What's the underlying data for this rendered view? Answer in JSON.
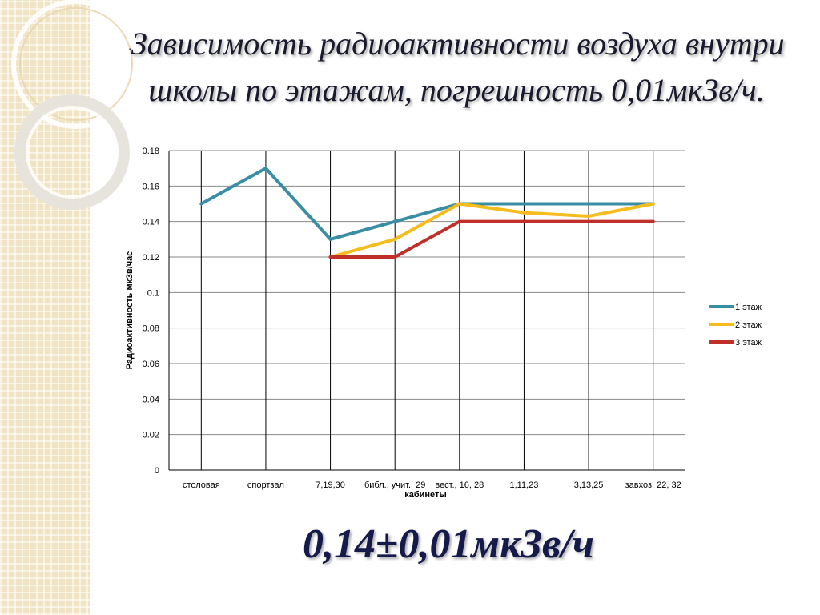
{
  "slide": {
    "bullet": ".",
    "title": "Зависимость радиоактивности воздуха внутри школы по этажам, погрешность 0,01мкЗв/ч.",
    "result": "0,14±0,01мкЗв/ч"
  },
  "chart_data": {
    "type": "line",
    "title": "",
    "xlabel": "кабинеты",
    "ylabel": "Радиоактивность мкЗв/час",
    "ylim": [
      0,
      0.18
    ],
    "yticks": [
      "0",
      "0.02",
      "0.04",
      "0.06",
      "0.08",
      "0.1",
      "0.12",
      "0.14",
      "0.16",
      "0.18"
    ],
    "grid": true,
    "legend_position": "right",
    "categories": [
      "столовая",
      "спортзал",
      "7,19,30",
      "библ., учит., 29",
      "вест., 16, 28",
      "1,11,23",
      "3,13,25",
      "завхоз, 22, 32"
    ],
    "series": [
      {
        "name": "1 этаж",
        "color": "#3a8ea4",
        "values": [
          0.15,
          0.17,
          0.13,
          0.14,
          0.15,
          0.15,
          0.15,
          0.15
        ]
      },
      {
        "name": "2 этаж",
        "color": "#f6bb1c",
        "values": [
          null,
          null,
          0.12,
          0.13,
          0.15,
          0.145,
          0.143,
          0.15
        ]
      },
      {
        "name": "3 этаж",
        "color": "#c0302a",
        "values": [
          null,
          null,
          0.12,
          0.12,
          0.14,
          0.14,
          0.14,
          0.14
        ]
      }
    ]
  }
}
